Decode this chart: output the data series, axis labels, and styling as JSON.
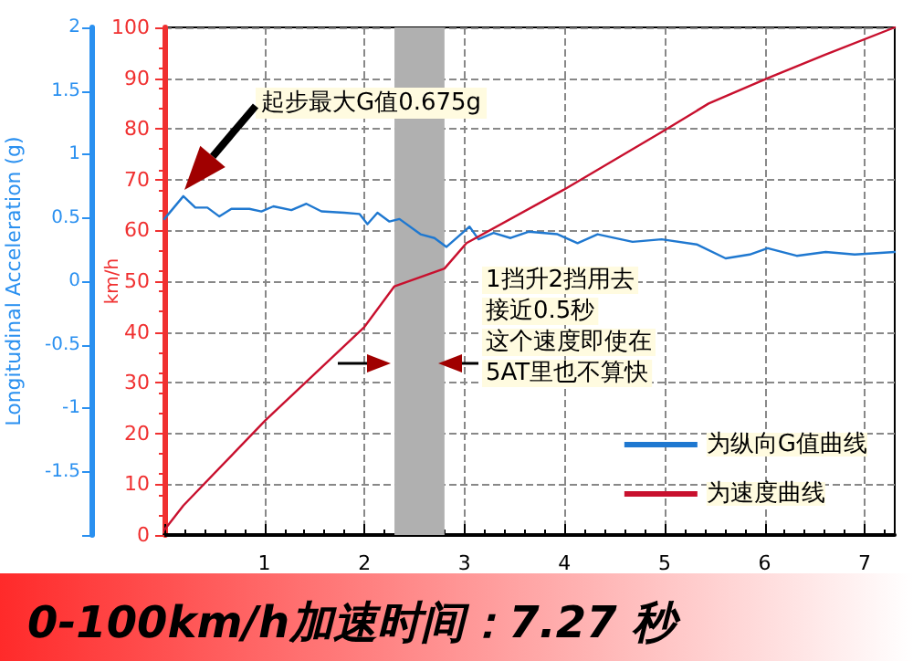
{
  "chart_data": {
    "type": "line",
    "title": "0-100km/h加速时间：7.27 秒",
    "xlabel": null,
    "ylabel": "km/h",
    "y2label": "Longitudinal Acceleration (g)",
    "xlim": [
      0,
      7.3
    ],
    "xticks": [
      {
        "value": 0,
        "label": null
      },
      1,
      2,
      3,
      4,
      5,
      6,
      7
    ],
    "ylim": [
      0,
      100
    ],
    "yticks": [
      0,
      10,
      20,
      30,
      40,
      50,
      60,
      70,
      80,
      90,
      100
    ],
    "y2lim": [
      -2,
      2
    ],
    "y2ticks": [
      {
        "value": -2,
        "label": null
      },
      -1.5,
      -1,
      -0.5,
      0,
      0.5,
      1,
      1.5,
      2
    ],
    "grid": true,
    "legend": "bottom right",
    "marker": "none",
    "line_style": "solid",
    "bands": [
      {
        "axis": "x",
        "from": 2.3,
        "to": 2.8,
        "color": "#b0b0b0"
      }
    ],
    "annotations": [
      "起步最大G值0.675g",
      "1挡升2挡用去",
      "接近0.5秒",
      "这个速度即使在",
      "5AT里也不算快"
    ],
    "series": [
      {
        "name": "为纵向G值曲线",
        "color": "#1f78d0",
        "axis": "y2",
        "x": [
          0,
          0.19,
          0.31,
          0.43,
          0.55,
          0.67,
          0.85,
          0.97,
          1.09,
          1.27,
          1.42,
          1.57,
          1.8,
          1.95,
          2.03,
          2.13,
          2.25,
          2.35,
          2.56,
          2.7,
          2.82,
          3.05,
          3.14,
          3.29,
          3.46,
          3.64,
          3.93,
          4.13,
          4.33,
          4.68,
          4.97,
          5.32,
          5.61,
          5.85,
          6.03,
          6.32,
          6.61,
          6.9,
          7.3
        ],
        "values": [
          0.49,
          0.67,
          0.58,
          0.58,
          0.51,
          0.57,
          0.57,
          0.55,
          0.59,
          0.56,
          0.61,
          0.55,
          0.54,
          0.53,
          0.45,
          0.54,
          0.47,
          0.49,
          0.37,
          0.34,
          0.27,
          0.43,
          0.33,
          0.38,
          0.34,
          0.39,
          0.37,
          0.3,
          0.37,
          0.31,
          0.33,
          0.29,
          0.18,
          0.21,
          0.26,
          0.2,
          0.23,
          0.21,
          0.23
        ]
      },
      {
        "name": "为速度曲线",
        "color": "#c8102e",
        "x": [
          0,
          0.19,
          1.01,
          2.0,
          2.3,
          2.8,
          3.02,
          3.99,
          4.98,
          5.44,
          6.03,
          6.6,
          7.3
        ],
        "values": [
          1,
          5.8,
          22.6,
          41,
          49,
          52.5,
          57.5,
          68,
          79.5,
          85,
          90,
          94.6,
          100
        ]
      }
    ]
  }
}
